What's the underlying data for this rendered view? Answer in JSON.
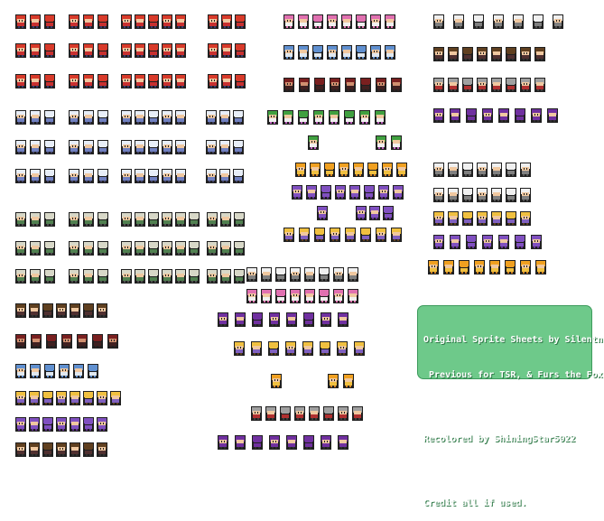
{
  "credits": {
    "line1": "Original Sprite Sheets by Silentninja,",
    "line2": " Previous for TSR, & Furs the Fox.",
    "line3": "Recolored by ShiningStar5022",
    "line4": "Credit all if used."
  },
  "colors": {
    "background": "#ffffff",
    "credit_box": "#6ec98a",
    "credit_border": "#3d9a5c",
    "credit_text": "#ffffff"
  },
  "sprite_groups": [
    {
      "name": "red-cap-trainer",
      "rows": 3,
      "hair": "#d83a2a",
      "skin": "#f0c8a0",
      "body": "#c83030",
      "legs": "#3a3a70"
    },
    {
      "name": "white-cap-trainer",
      "rows": 3,
      "hair": "#e8eef8",
      "skin": "#f0c8a0",
      "body": "#7080c0",
      "legs": "#404060"
    },
    {
      "name": "green-hat-trainer",
      "rows": 3,
      "hair": "#d8d8c8",
      "skin": "#f0c8a0",
      "body": "#508050",
      "legs": "#505050"
    },
    {
      "name": "pink-hair-girl",
      "rows": 1,
      "hair": "#e070b0",
      "skin": "#f0c8a0",
      "body": "#f0f0f0",
      "legs": "#e070b0"
    },
    {
      "name": "blue-hair-girl",
      "rows": 1,
      "hair": "#6090d0",
      "skin": "#f0c8a0",
      "body": "#e0e8f0",
      "legs": "#6090d0"
    },
    {
      "name": "maroon-wild",
      "rows": 1,
      "hair": "#7a2020",
      "skin": "#d09070",
      "body": "#402020",
      "legs": "#302020"
    },
    {
      "name": "green-hair-flower",
      "rows": 2,
      "hair": "#40a040",
      "skin": "#f0c8a0",
      "body": "#f0f0f0",
      "legs": "#c060c0"
    },
    {
      "name": "orange-hair",
      "rows": 1,
      "hair": "#f0a020",
      "skin": "#f0c8a0",
      "body": "#f0c040",
      "legs": "#d08020"
    },
    {
      "name": "purple-hair",
      "rows": 2,
      "hair": "#8050c0",
      "skin": "#f0c8a0",
      "body": "#8050c0",
      "legs": "#603090"
    },
    {
      "name": "blonde-big-hair",
      "rows": 1,
      "hair": "#f0c040",
      "skin": "#f0c8a0",
      "body": "#8060c0",
      "legs": "#604020"
    },
    {
      "name": "white-bun-old",
      "rows": 1,
      "hair": "#f0f0f0",
      "skin": "#f0c8a0",
      "body": "#808080",
      "legs": "#505050"
    },
    {
      "name": "brown-hair-kids",
      "rows": 1,
      "hair": "#604020",
      "skin": "#f0c8a0",
      "body": "#503030",
      "legs": "#303030"
    },
    {
      "name": "grey-hair-elder",
      "rows": 1,
      "hair": "#a0a0a0",
      "skin": "#f0c8a0",
      "body": "#b03030",
      "legs": "#404040"
    },
    {
      "name": "purple-cap",
      "rows": 1,
      "hair": "#7030a0",
      "skin": "#f0c8a0",
      "body": "#7030a0",
      "legs": "#303030"
    }
  ]
}
